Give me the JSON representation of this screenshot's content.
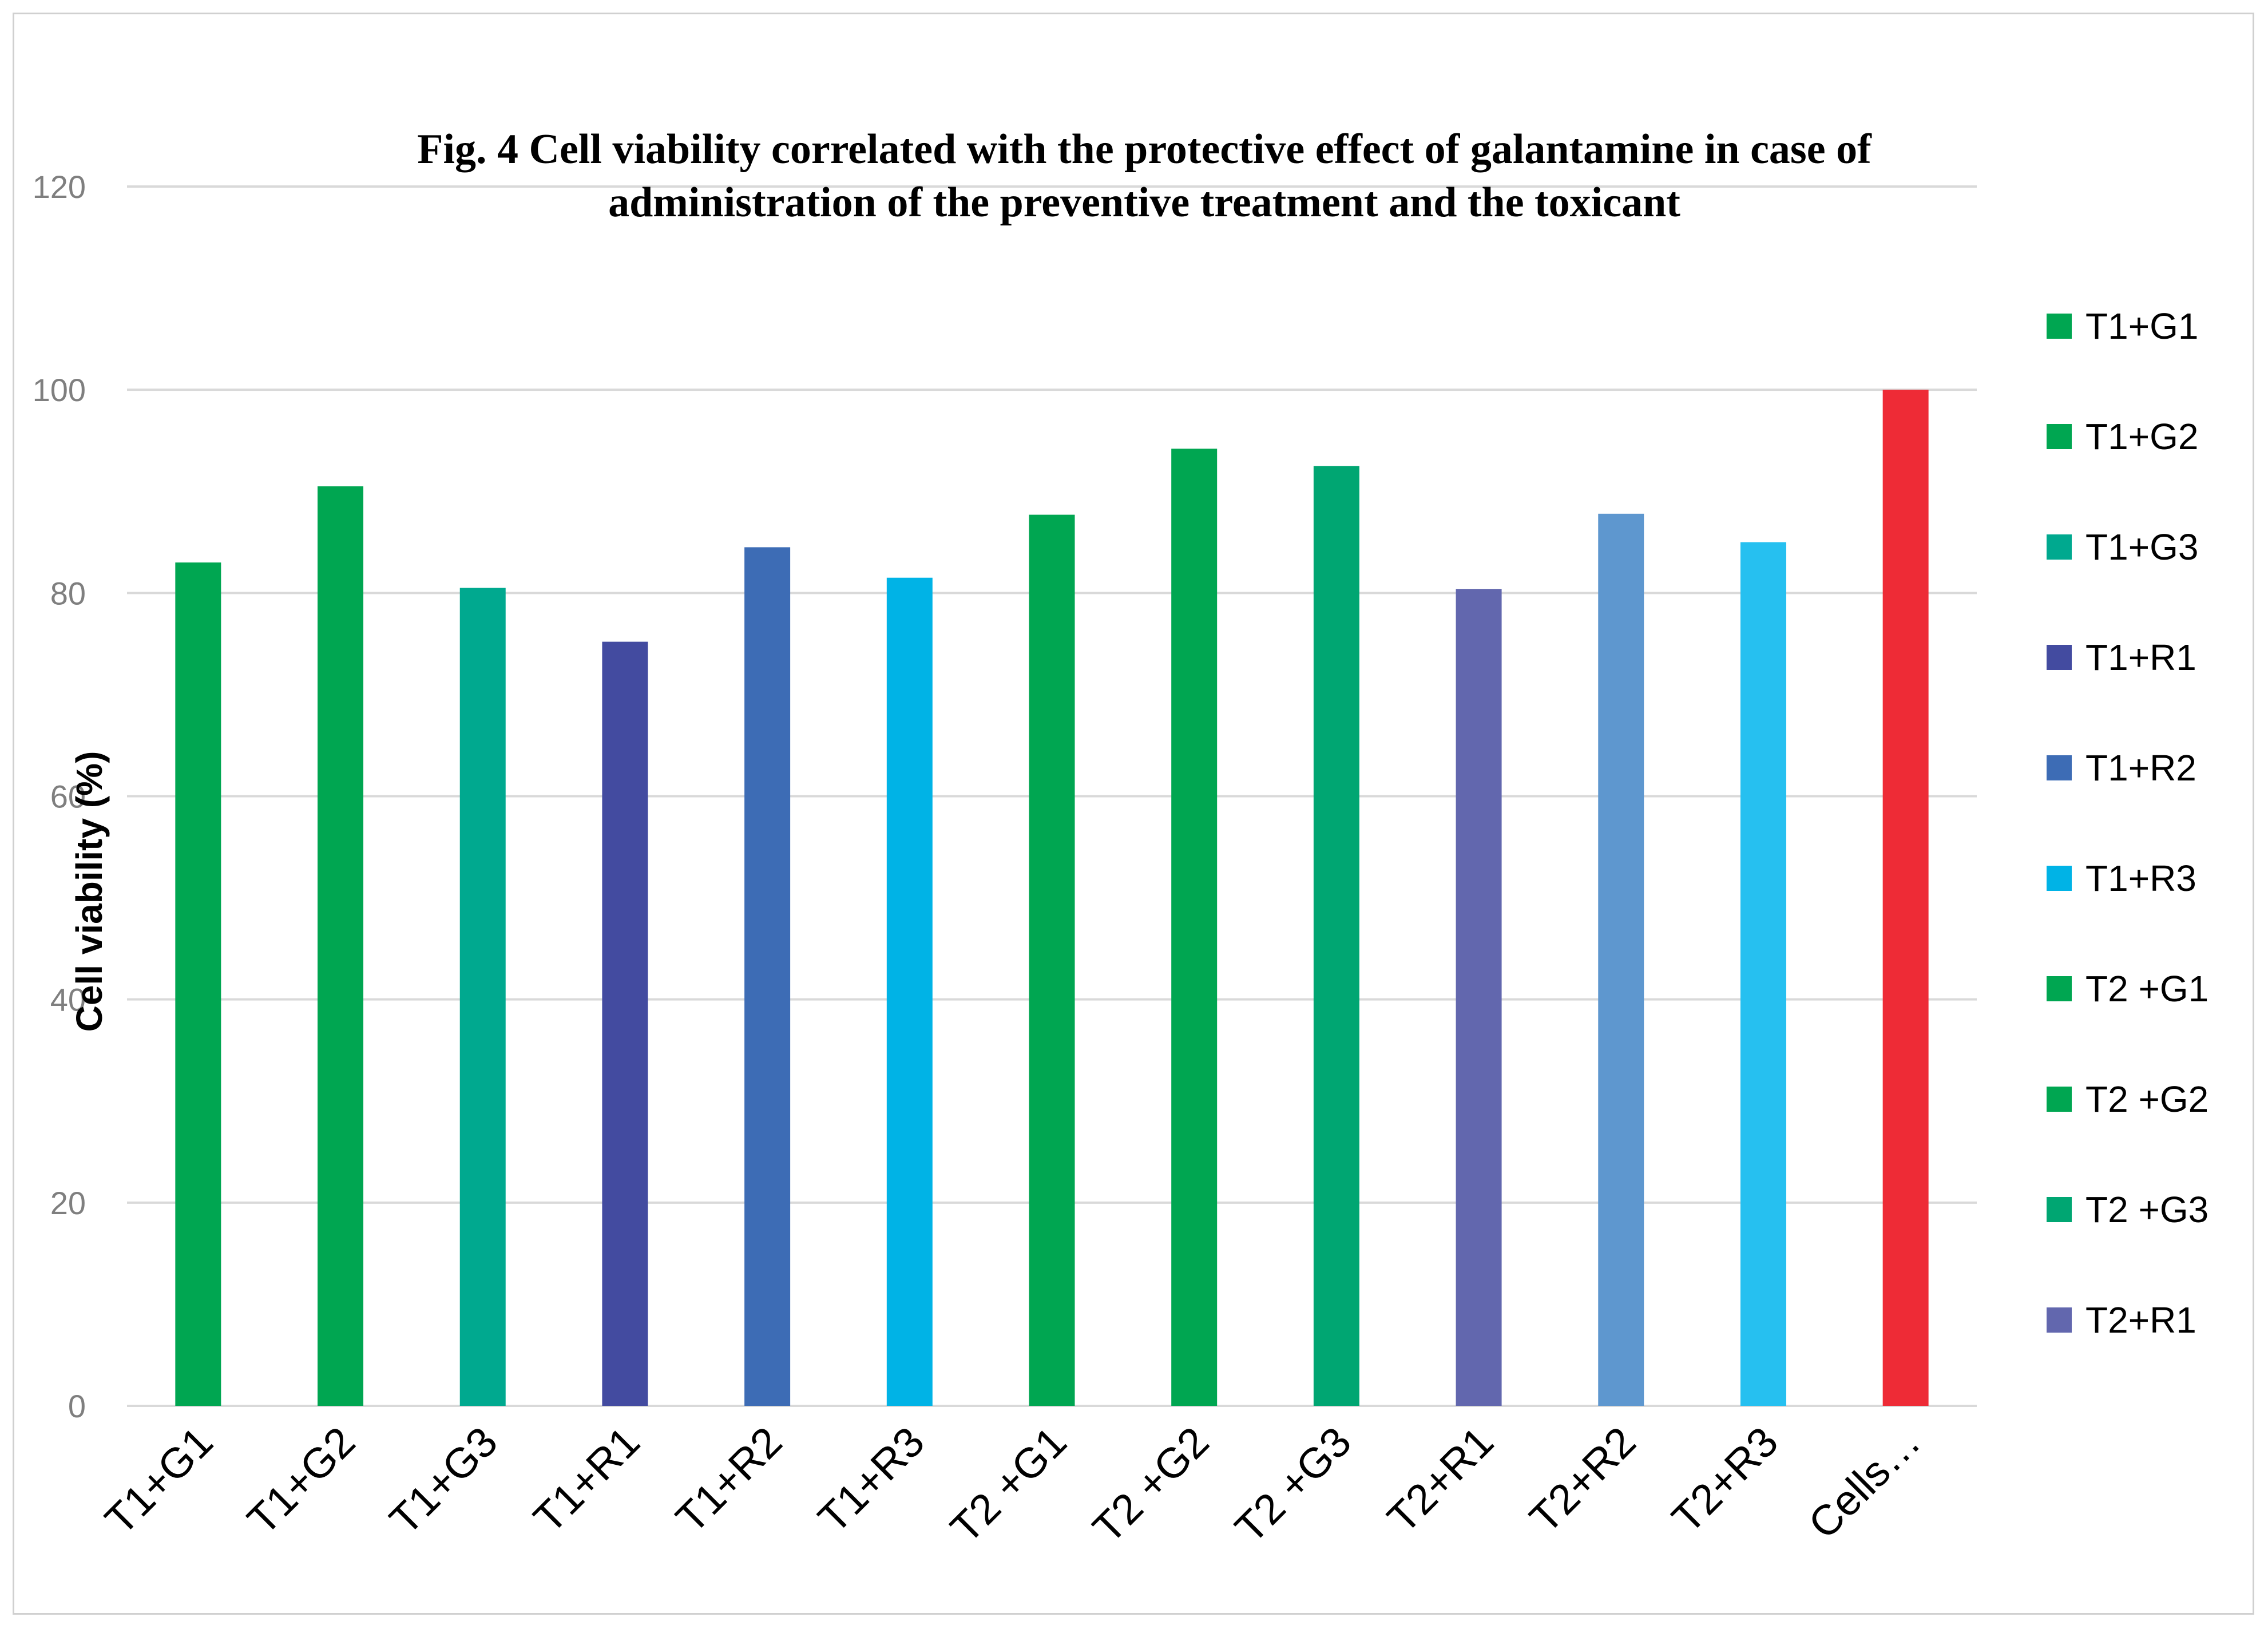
{
  "chart_data": {
    "type": "bar",
    "title_lines": [
      "Fig. 4 Cell viability correlated with the protective effect of galantamine in case of",
      "administration of the preventive treatment and the toxicant"
    ],
    "xlabel": "",
    "ylabel": "Cell viability (%)",
    "ylim": [
      0,
      120
    ],
    "yticks": [
      0,
      20,
      40,
      60,
      80,
      100,
      120
    ],
    "grid": true,
    "categories": [
      "T1+G1",
      "T1+G2",
      "T1+G3",
      "T1+R1",
      "T1+R2",
      "T1+R3",
      "T2 +G1",
      "T2 +G2",
      "T2 +G3",
      "T2+R1",
      "T2+R2",
      "T2+R3",
      "Cells…"
    ],
    "values": [
      83,
      90.5,
      80.5,
      75.2,
      84.5,
      81.5,
      87.7,
      94.2,
      92.5,
      80.4,
      87.8,
      85,
      100
    ],
    "colors": [
      "#00a651",
      "#00a651",
      "#00a98f",
      "#434ba0",
      "#3d6cb5",
      "#00b3e6",
      "#00a651",
      "#00a651",
      "#00a672",
      "#6267ae",
      "#5e97cf",
      "#26c0f0",
      "#ee2b36"
    ],
    "legend": {
      "placement": "right",
      "entries": [
        {
          "label": "T1+G1",
          "color": "#00a651"
        },
        {
          "label": "T1+G2",
          "color": "#00a651"
        },
        {
          "label": "T1+G3",
          "color": "#00a98f"
        },
        {
          "label": "T1+R1",
          "color": "#434ba0"
        },
        {
          "label": "T1+R2",
          "color": "#3d6cb5"
        },
        {
          "label": "T1+R3",
          "color": "#00b3e6"
        },
        {
          "label": "T2 +G1",
          "color": "#00a651"
        },
        {
          "label": "T2 +G2",
          "color": "#00a651"
        },
        {
          "label": "T2 +G3",
          "color": "#00a672"
        },
        {
          "label": "T2+R1",
          "color": "#6267ae"
        }
      ]
    },
    "gridline_color": "#d9d9d9"
  }
}
